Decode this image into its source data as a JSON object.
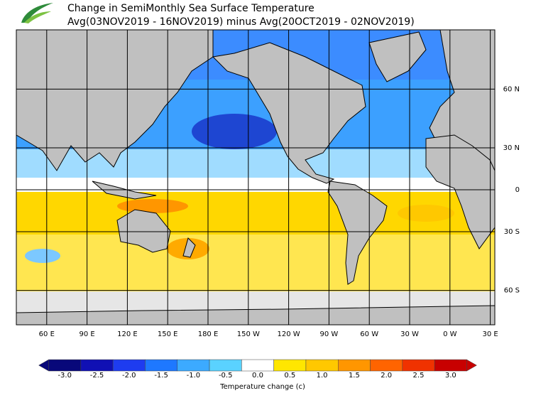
{
  "header": {
    "title": "Change in SemiMonthly Sea Surface Temperature",
    "subtitle": "Avg(03NOV2019 - 16NOV2019) minus Avg(20OCT2019 - 02NOV2019)"
  },
  "map": {
    "lon_ticks": [
      {
        "value": 60,
        "label": "60 E"
      },
      {
        "value": 90,
        "label": "90 E"
      },
      {
        "value": 120,
        "label": "120 E"
      },
      {
        "value": 150,
        "label": "150 E"
      },
      {
        "value": 180,
        "label": "180 E"
      },
      {
        "value": -150,
        "label": "150 W"
      },
      {
        "value": -120,
        "label": "120 W"
      },
      {
        "value": -90,
        "label": "90 W"
      },
      {
        "value": -60,
        "label": "60 W"
      },
      {
        "value": -30,
        "label": "30 W"
      },
      {
        "value": 0,
        "label": "0 W"
      },
      {
        "value": 30,
        "label": "30 E"
      }
    ],
    "lat_ticks": [
      {
        "value": 60,
        "label": "60 N"
      },
      {
        "value": 30,
        "label": "30 N"
      },
      0,
      {
        "value": -30,
        "label": "30 S"
      },
      {
        "value": -60,
        "label": "60 S"
      }
    ]
  },
  "colorbar": {
    "label": "Temperature change  (c)",
    "bins": [
      {
        "value": -3,
        "label": "-3.0",
        "color": "#08087a"
      },
      {
        "value": -2.5,
        "label": "-2.5",
        "color": "#1010b4"
      },
      {
        "value": -2,
        "label": "-2.0",
        "color": "#1e3cf0"
      },
      {
        "value": -1.5,
        "label": "-1.5",
        "color": "#1e78ff"
      },
      {
        "value": -1,
        "label": "-1.0",
        "color": "#3caaff"
      },
      {
        "value": -0.5,
        "label": "-0.5",
        "color": "#5ad2ff"
      },
      {
        "value": 0,
        "label": "0.0",
        "color": "#ffffff"
      },
      {
        "value": 0.5,
        "label": "0.5",
        "color": "#ffe600"
      },
      {
        "value": 1,
        "label": "1.0",
        "color": "#ffc800"
      },
      {
        "value": 1.5,
        "label": "1.5",
        "color": "#ff9600"
      },
      {
        "value": 2,
        "label": "2.0",
        "color": "#ff6400"
      },
      {
        "value": 2.5,
        "label": "2.5",
        "color": "#f03200"
      },
      {
        "value": 3,
        "label": "3.0",
        "color": "#c80000"
      }
    ]
  }
}
